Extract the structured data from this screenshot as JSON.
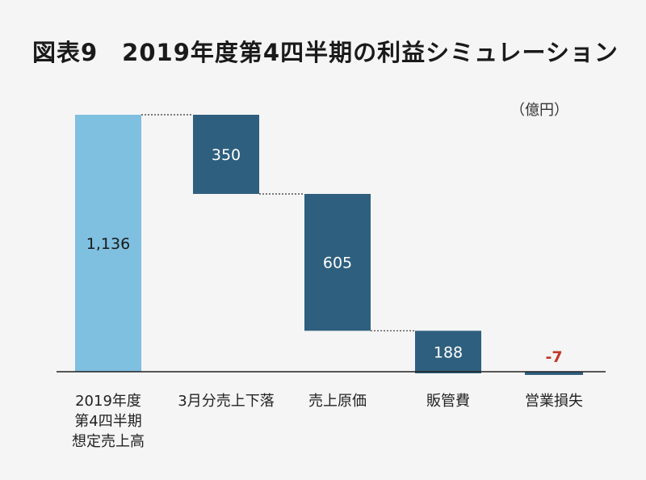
{
  "title": "図表9　2019年度第4四半期の利益シミュレーション",
  "unit_label": "（億円）",
  "colors": {
    "start_bar": "#7fbfdf",
    "step_bar": "#2e5f7e",
    "negative_label": "#c0392b",
    "connector": "#333333",
    "axis": "#222222"
  },
  "chart_data": {
    "type": "waterfall",
    "title": "図表9　2019年度第4四半期の利益シミュレーション",
    "unit": "（億円）",
    "xlabel": "",
    "ylabel": "",
    "ylim": [
      0,
      1136
    ],
    "grid": false,
    "legend": "none",
    "steps": [
      {
        "category": [
          "2019年度",
          "第4四半期",
          "想定売上高"
        ],
        "value": 1136,
        "label": "1,136",
        "kind": "start"
      },
      {
        "category": [
          "3月分売上下落"
        ],
        "value": -350,
        "label": "350",
        "kind": "decrease"
      },
      {
        "category": [
          "売上原価"
        ],
        "value": -605,
        "label": "605",
        "kind": "decrease"
      },
      {
        "category": [
          "販管費"
        ],
        "value": -188,
        "label": "188",
        "kind": "decrease"
      },
      {
        "category": [
          "営業損失"
        ],
        "value": -7,
        "label": "-7",
        "kind": "result"
      }
    ]
  }
}
